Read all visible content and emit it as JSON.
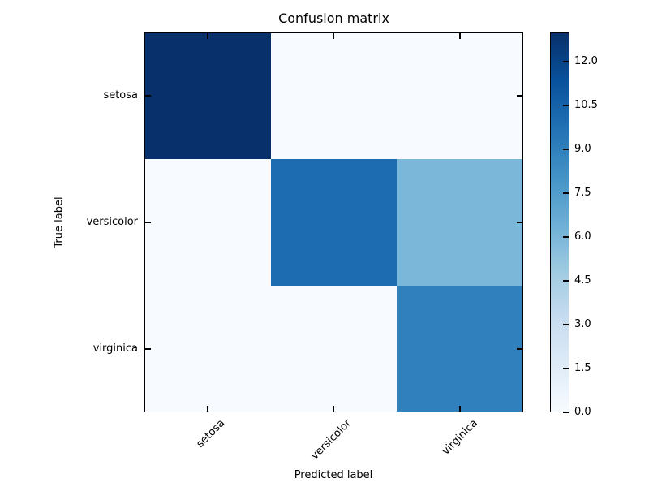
{
  "chart_data": {
    "type": "heatmap",
    "title": "Confusion matrix",
    "xlabel": "Predicted label",
    "ylabel": "True label",
    "x_tick_labels": [
      "setosa",
      "versicolor",
      "virginica"
    ],
    "y_tick_labels": [
      "setosa",
      "versicolor",
      "virginica"
    ],
    "matrix": [
      [
        13,
        0,
        0
      ],
      [
        0,
        10,
        6
      ],
      [
        0,
        0,
        9
      ]
    ],
    "vmin": 0,
    "vmax": 13,
    "colormap": "Blues",
    "colormap_stops": [
      [
        0.0,
        "#f7fbff"
      ],
      [
        0.125,
        "#deebf7"
      ],
      [
        0.25,
        "#c6dbef"
      ],
      [
        0.375,
        "#9ecae1"
      ],
      [
        0.5,
        "#6baed6"
      ],
      [
        0.625,
        "#4292c6"
      ],
      [
        0.75,
        "#2171b5"
      ],
      [
        0.875,
        "#08519c"
      ],
      [
        1.0,
        "#08306b"
      ]
    ],
    "colorbar_ticks": [
      0.0,
      1.5,
      3.0,
      4.5,
      6.0,
      7.5,
      9.0,
      10.5,
      12.0
    ],
    "colorbar_tick_labels": [
      "0.0",
      "1.5",
      "3.0",
      "4.5",
      "6.0",
      "7.5",
      "9.0",
      "10.5",
      "12.0"
    ],
    "legend_position": "right",
    "grid": false
  }
}
